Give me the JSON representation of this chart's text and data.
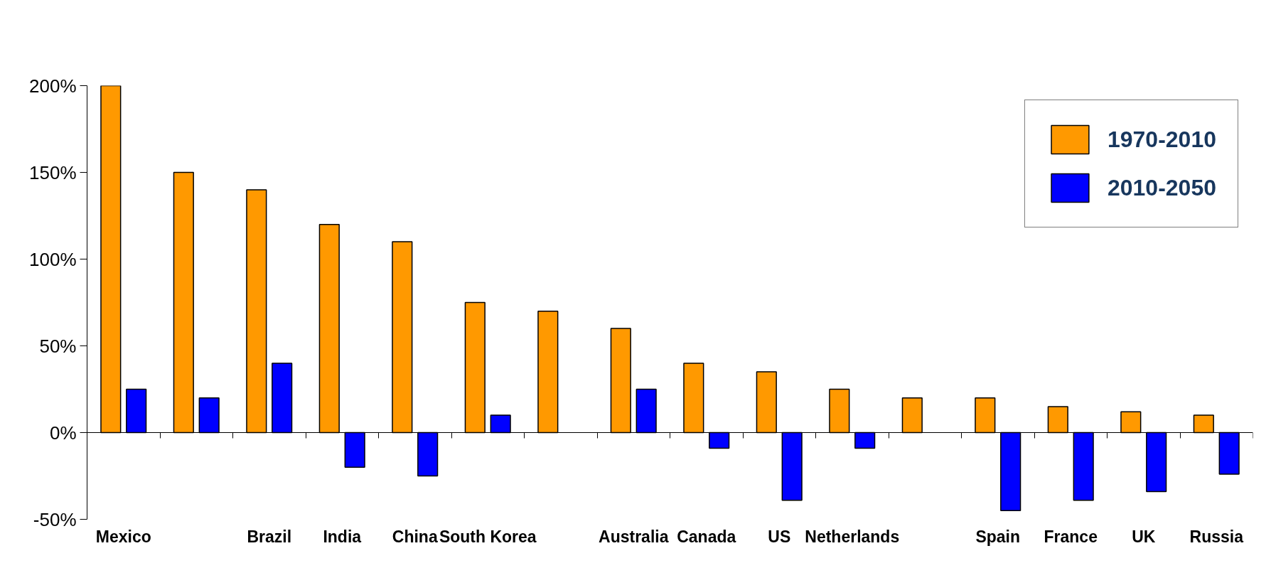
{
  "chart_data": {
    "type": "bar",
    "categories": [
      "Mexico",
      null,
      "Brazil",
      "India",
      "China",
      "South Korea",
      null,
      "Australia",
      "Canada",
      "US",
      "Netherlands",
      null,
      "Spain",
      "France",
      "UK",
      "Russia"
    ],
    "series": [
      {
        "name": "1970-2010",
        "color": "#ff9900",
        "values": [
          200,
          150,
          140,
          120,
          110,
          75,
          70,
          60,
          40,
          35,
          25,
          20,
          20,
          15,
          12,
          10
        ]
      },
      {
        "name": "2010-2050",
        "color": "#0000ff",
        "values": [
          25,
          20,
          40,
          -20,
          -25,
          10,
          null,
          25,
          -9,
          -39,
          -9,
          null,
          -45,
          -39,
          -34,
          -24
        ]
      }
    ],
    "ylim": [
      -50,
      200
    ],
    "yticks": [
      {
        "value": -50,
        "label": "-50%"
      },
      {
        "value": 0,
        "label": "0%"
      },
      {
        "value": 50,
        "label": "50%"
      },
      {
        "value": 100,
        "label": "100%"
      },
      {
        "value": 150,
        "label": "150%"
      },
      {
        "value": 200,
        "label": "200%"
      }
    ],
    "legend": "top right"
  }
}
